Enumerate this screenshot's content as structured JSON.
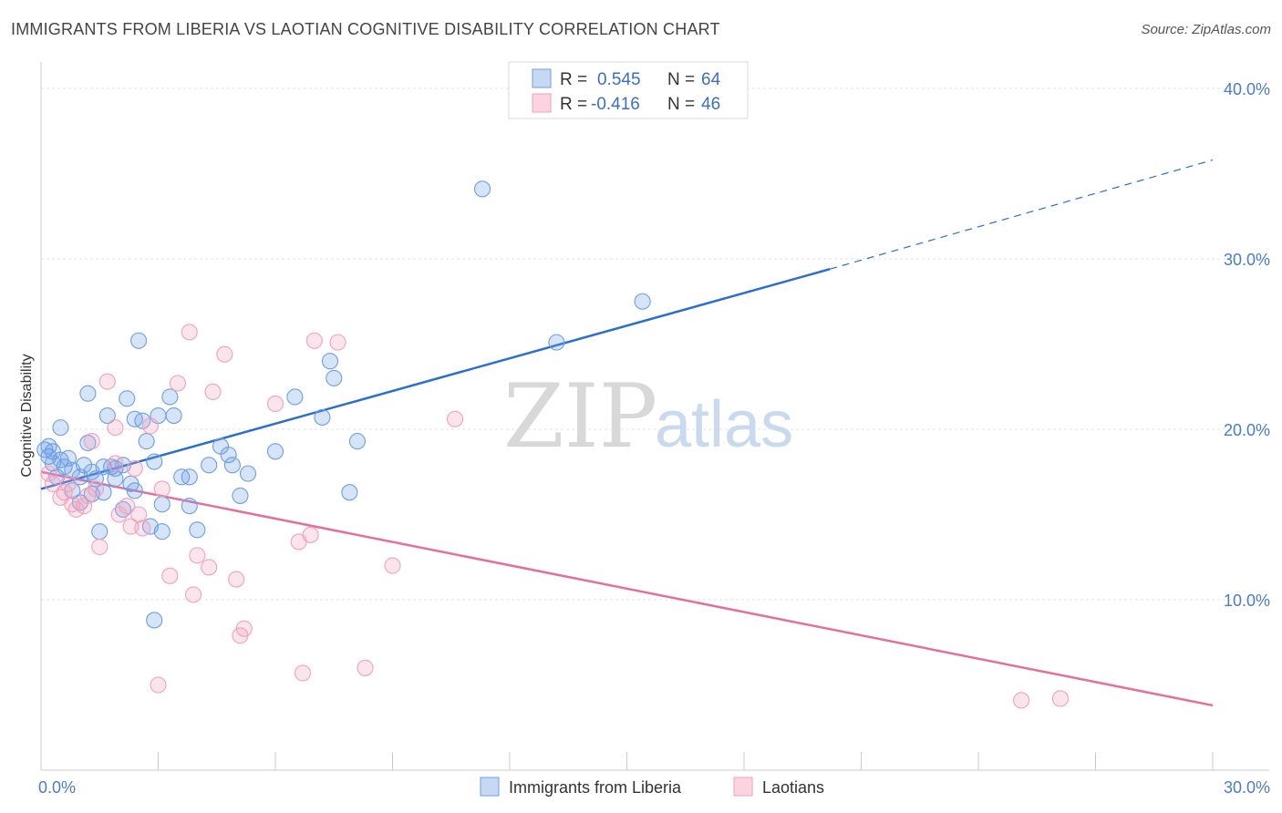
{
  "title": "IMMIGRANTS FROM LIBERIA VS LAOTIAN COGNITIVE DISABILITY CORRELATION CHART",
  "source": "Source: ZipAtlas.com",
  "watermark": {
    "zip": "ZIP",
    "atlas": "atlas"
  },
  "legend": {
    "rows": [
      {
        "r_label": "R =",
        "r_value": "0.545",
        "n_label": "N =",
        "n_value": "64"
      },
      {
        "r_label": "R =",
        "r_value": "-0.416",
        "n_label": "N =",
        "n_value": "46"
      }
    ]
  },
  "bottom_legend": [
    "Immigrants from Liberia",
    "Laotians"
  ],
  "chart_data": {
    "type": "scatter",
    "title": "IMMIGRANTS FROM LIBERIA VS LAOTIAN COGNITIVE DISABILITY CORRELATION CHART",
    "xlabel": "",
    "ylabel": "Cognitive Disability",
    "xlim": [
      0,
      30
    ],
    "ylim": [
      0,
      40
    ],
    "x_tick_labels": [
      "0.0%",
      "30.0%"
    ],
    "y_ticks": [
      10,
      20,
      30,
      40
    ],
    "y_tick_labels": [
      "10.0%",
      "20.0%",
      "30.0%",
      "40.0%"
    ],
    "grid": true,
    "legend_position": "top-center",
    "colors": {
      "liberia": "#6d9ee6",
      "laotians": "#f1a0bb",
      "liberia_line": "#2a6fd0",
      "laotians_line": "#e56f9a"
    },
    "series": [
      {
        "name": "Immigrants from Liberia",
        "R": 0.545,
        "N": 64,
        "trend": {
          "x0": 0,
          "y0": 16.5,
          "x1": 20.2,
          "y1": 29.4,
          "dash_to_x": 30,
          "dash_to_y": 35.8
        },
        "points": [
          [
            0.1,
            18.8
          ],
          [
            0.2,
            18.4
          ],
          [
            0.3,
            18.0
          ],
          [
            0.3,
            18.7
          ],
          [
            0.4,
            17.2
          ],
          [
            0.5,
            20.1
          ],
          [
            0.5,
            18.2
          ],
          [
            0.6,
            17.8
          ],
          [
            0.7,
            18.3
          ],
          [
            0.8,
            16.4
          ],
          [
            0.8,
            17.6
          ],
          [
            1.0,
            15.7
          ],
          [
            1.0,
            17.2
          ],
          [
            1.1,
            17.9
          ],
          [
            1.2,
            19.2
          ],
          [
            1.2,
            22.1
          ],
          [
            1.3,
            17.5
          ],
          [
            1.4,
            17.1
          ],
          [
            1.5,
            14.0
          ],
          [
            1.6,
            17.8
          ],
          [
            1.6,
            16.3
          ],
          [
            1.7,
            20.8
          ],
          [
            1.8,
            17.8
          ],
          [
            1.9,
            17.1
          ],
          [
            1.9,
            17.7
          ],
          [
            2.1,
            17.9
          ],
          [
            2.1,
            15.3
          ],
          [
            2.2,
            21.8
          ],
          [
            2.3,
            16.8
          ],
          [
            2.4,
            16.4
          ],
          [
            2.4,
            20.6
          ],
          [
            2.5,
            25.2
          ],
          [
            2.6,
            20.5
          ],
          [
            2.7,
            19.3
          ],
          [
            2.8,
            14.3
          ],
          [
            2.9,
            18.1
          ],
          [
            2.9,
            8.8
          ],
          [
            3.0,
            20.8
          ],
          [
            3.1,
            14.0
          ],
          [
            3.1,
            15.6
          ],
          [
            3.3,
            21.9
          ],
          [
            3.4,
            20.8
          ],
          [
            3.6,
            17.2
          ],
          [
            3.8,
            17.2
          ],
          [
            3.8,
            15.5
          ],
          [
            4.0,
            14.1
          ],
          [
            4.3,
            17.9
          ],
          [
            4.6,
            19.0
          ],
          [
            4.8,
            18.5
          ],
          [
            4.9,
            17.9
          ],
          [
            5.1,
            16.1
          ],
          [
            5.3,
            17.4
          ],
          [
            6.0,
            18.7
          ],
          [
            6.5,
            21.9
          ],
          [
            7.2,
            20.7
          ],
          [
            7.4,
            24.0
          ],
          [
            7.5,
            23.0
          ],
          [
            7.9,
            16.3
          ],
          [
            8.1,
            19.3
          ],
          [
            11.3,
            34.1
          ],
          [
            13.2,
            25.1
          ],
          [
            15.4,
            27.5
          ],
          [
            0.2,
            19.0
          ],
          [
            1.3,
            16.2
          ]
        ]
      },
      {
        "name": "Laotians",
        "R": -0.416,
        "N": 46,
        "trend": {
          "x0": 0,
          "y0": 17.5,
          "x1": 30,
          "y1": 3.8
        },
        "points": [
          [
            0.2,
            17.4
          ],
          [
            0.3,
            16.8
          ],
          [
            0.5,
            16.0
          ],
          [
            0.6,
            16.3
          ],
          [
            0.7,
            16.8
          ],
          [
            0.8,
            15.6
          ],
          [
            0.9,
            15.3
          ],
          [
            1.1,
            15.5
          ],
          [
            1.2,
            16.1
          ],
          [
            1.3,
            19.3
          ],
          [
            1.4,
            16.5
          ],
          [
            1.5,
            13.1
          ],
          [
            1.7,
            22.8
          ],
          [
            1.9,
            18.0
          ],
          [
            1.9,
            20.1
          ],
          [
            2.0,
            15.0
          ],
          [
            2.2,
            15.5
          ],
          [
            2.3,
            14.3
          ],
          [
            2.4,
            17.7
          ],
          [
            2.5,
            15.0
          ],
          [
            2.6,
            14.2
          ],
          [
            2.8,
            20.2
          ],
          [
            3.0,
            5.0
          ],
          [
            3.1,
            16.5
          ],
          [
            3.3,
            11.4
          ],
          [
            3.5,
            22.7
          ],
          [
            3.8,
            25.7
          ],
          [
            3.9,
            10.3
          ],
          [
            4.0,
            12.6
          ],
          [
            4.3,
            11.9
          ],
          [
            4.4,
            22.2
          ],
          [
            4.7,
            24.4
          ],
          [
            5.0,
            11.2
          ],
          [
            5.1,
            7.9
          ],
          [
            5.2,
            8.3
          ],
          [
            6.0,
            21.5
          ],
          [
            6.6,
            13.4
          ],
          [
            6.7,
            5.7
          ],
          [
            6.9,
            13.8
          ],
          [
            7.0,
            25.2
          ],
          [
            7.6,
            25.1
          ],
          [
            8.3,
            6.0
          ],
          [
            9.0,
            12.0
          ],
          [
            10.6,
            20.6
          ],
          [
            25.1,
            4.1
          ],
          [
            26.1,
            4.2
          ]
        ]
      }
    ]
  }
}
